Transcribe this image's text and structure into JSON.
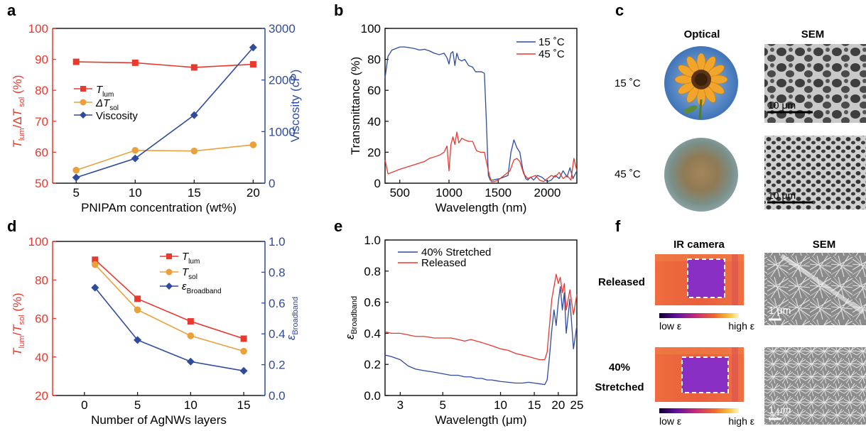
{
  "colors": {
    "red": "#e8392f",
    "orange": "#eca03c",
    "blue": "#2f4b9c",
    "axis": "#1a1a1a"
  },
  "panels": {
    "a": "a",
    "b": "b",
    "c": "c",
    "d": "d",
    "e": "e",
    "f": "f"
  },
  "chart_data": [
    {
      "id": "a",
      "type": "line",
      "xlabel": "PNIPAm concentration (wt%)",
      "ylabel_left": "T_lum/ΔT_sol (%)",
      "ylabel_right": "Viscosity (cP)",
      "xlim": [
        3,
        21
      ],
      "ylim_left": [
        50,
        100
      ],
      "ylim_right": [
        0,
        3000
      ],
      "x_ticks": [
        "5",
        "10",
        "15",
        "20"
      ],
      "y_ticks_left": [
        "50",
        "60",
        "70",
        "80",
        "90",
        "100"
      ],
      "y_ticks_right": [
        "0",
        "1000",
        "2000",
        "3000"
      ],
      "legend": {
        "t_lum": "T",
        "t_lum_sub": "lum",
        "dt_sol": "ΔT",
        "dt_sol_sub": "sol",
        "viscosity": "Viscosity"
      },
      "series": [
        {
          "name": "T_lum",
          "axis": "left",
          "marker": "square",
          "color": "#e8392f",
          "x": [
            5,
            10,
            15,
            20
          ],
          "y": [
            89.2,
            88.9,
            87.4,
            88.4
          ]
        },
        {
          "name": "ΔT_sol",
          "axis": "left",
          "marker": "circle",
          "color": "#eca03c",
          "x": [
            5,
            10,
            15,
            20
          ],
          "y": [
            54.2,
            60.6,
            60.4,
            62.4
          ]
        },
        {
          "name": "Viscosity",
          "axis": "right",
          "marker": "diamond",
          "color": "#2f4b9c",
          "x": [
            5,
            10,
            15,
            20
          ],
          "y": [
            110,
            480,
            1320,
            2630
          ]
        }
      ]
    },
    {
      "id": "b",
      "type": "line",
      "xlabel": "Wavelength (nm)",
      "ylabel": "Transmittance (%)",
      "xlim": [
        350,
        2300
      ],
      "ylim": [
        0,
        100
      ],
      "x_ticks": [
        "500",
        "1000",
        "1500",
        "2000"
      ],
      "y_ticks": [
        "0",
        "20",
        "40",
        "60",
        "80",
        "100"
      ],
      "legend": [
        "15 ˚C",
        "45 ˚C"
      ],
      "series": [
        {
          "name": "15 ˚C",
          "color": "#2f4b9c",
          "x": [
            350,
            380,
            420,
            460,
            500,
            550,
            600,
            650,
            700,
            750,
            800,
            850,
            900,
            950,
            980,
            1000,
            1020,
            1040,
            1060,
            1080,
            1100,
            1130,
            1160,
            1200,
            1240,
            1270,
            1300,
            1330,
            1360,
            1380,
            1400,
            1420,
            1450,
            1480,
            1520,
            1560,
            1600,
            1630,
            1660,
            1690,
            1720,
            1750,
            1780,
            1800,
            1830,
            1860,
            1900,
            1940,
            1980,
            2000,
            2040,
            2080,
            2120,
            2160,
            2200,
            2230,
            2260,
            2300
          ],
          "y": [
            68,
            82,
            86,
            87,
            88,
            88,
            87.5,
            87,
            86,
            86.5,
            85.5,
            84,
            83,
            84,
            81,
            77,
            84,
            85,
            76,
            84,
            80,
            79,
            80,
            76,
            75,
            72,
            72,
            72,
            71,
            40,
            5,
            2,
            2,
            2.5,
            3,
            4,
            5,
            20,
            28,
            23,
            20,
            9,
            3,
            2,
            4,
            2,
            5,
            4,
            2,
            1,
            2,
            5,
            3,
            8,
            4,
            10,
            3,
            8
          ]
        },
        {
          "name": "45 ˚C",
          "color": "#e8392f",
          "x": [
            350,
            380,
            420,
            460,
            500,
            550,
            600,
            650,
            700,
            750,
            800,
            850,
            900,
            950,
            980,
            1000,
            1020,
            1040,
            1060,
            1080,
            1100,
            1130,
            1160,
            1200,
            1240,
            1280,
            1320,
            1360,
            1400,
            1430,
            1460,
            1500,
            1540,
            1580,
            1620,
            1660,
            1690,
            1720,
            1760,
            1800,
            1840,
            1880,
            1920,
            1960,
            2000,
            2040,
            2080,
            2120,
            2160,
            2200,
            2240,
            2270,
            2300
          ],
          "y": [
            15,
            6,
            7,
            8,
            9,
            10,
            11,
            12,
            13,
            14,
            16,
            17,
            18,
            20,
            24,
            8,
            25,
            30,
            25,
            33,
            26,
            29,
            28,
            27,
            27,
            21,
            20,
            20,
            8,
            1,
            1,
            2,
            4,
            6,
            8,
            15,
            16,
            14,
            6,
            3,
            4,
            5,
            2,
            1,
            3,
            5,
            4,
            7,
            3,
            5,
            2,
            16,
            8
          ]
        }
      ]
    },
    {
      "id": "d",
      "type": "line",
      "xlabel": "Number of AgNWs layers",
      "ylabel_left": "T_lum/T_sol (%)",
      "ylabel_right": "ε_Broadband",
      "xlim": [
        -3,
        17
      ],
      "ylim_left": [
        20,
        100
      ],
      "ylim_right": [
        0,
        1.0
      ],
      "x_ticks": [
        "0",
        "5",
        "10",
        "15"
      ],
      "y_ticks_left": [
        "20",
        "40",
        "60",
        "80",
        "100"
      ],
      "y_ticks_right": [
        "0.0",
        "0.2",
        "0.4",
        "0.6",
        "0.8",
        "1.0"
      ],
      "legend": {
        "t_lum": "T",
        "t_lum_sub": "lum",
        "t_sol": "T",
        "t_sol_sub": "sol",
        "eps": "ε",
        "eps_sub": "Broadband"
      },
      "series": [
        {
          "name": "T_lum",
          "axis": "left",
          "marker": "square",
          "color": "#e8392f",
          "x": [
            1,
            5,
            10,
            15
          ],
          "y": [
            90.5,
            70.2,
            58.5,
            49.5
          ]
        },
        {
          "name": "T_sol",
          "axis": "left",
          "marker": "circle",
          "color": "#eca03c",
          "x": [
            1,
            5,
            10,
            15
          ],
          "y": [
            88,
            64.5,
            51,
            43
          ]
        },
        {
          "name": "ε_Broadband",
          "axis": "right",
          "marker": "diamond",
          "color": "#2f4b9c",
          "x": [
            1,
            5,
            10,
            15
          ],
          "y": [
            0.7,
            0.36,
            0.22,
            0.16
          ]
        }
      ]
    },
    {
      "id": "e",
      "type": "line",
      "xscale": "log",
      "xlabel": "Wavelength (μm)",
      "ylabel": "ε_Broadband",
      "xlim": [
        2.5,
        25
      ],
      "ylim": [
        0.0,
        1.0
      ],
      "x_ticks": [
        "3",
        "5",
        "10",
        "15",
        "20",
        "25"
      ],
      "y_ticks": [
        "0.0",
        "0.2",
        "0.4",
        "0.6",
        "0.8",
        "1.0"
      ],
      "legend": [
        "40% Stretched",
        "Released"
      ],
      "series": [
        {
          "name": "40% Stretched",
          "color": "#2f4b9c",
          "x": [
            2.5,
            2.7,
            3.0,
            3.3,
            3.6,
            4.0,
            4.5,
            5.0,
            5.5,
            6.0,
            6.5,
            7.0,
            7.5,
            8.0,
            8.5,
            9.0,
            9.5,
            10,
            11,
            12,
            13,
            14,
            15,
            16,
            17,
            17.5,
            18,
            18.5,
            19,
            19.5,
            20,
            20.5,
            21,
            21.5,
            22,
            23,
            24,
            25
          ],
          "y": [
            0.26,
            0.25,
            0.23,
            0.19,
            0.17,
            0.16,
            0.15,
            0.14,
            0.13,
            0.13,
            0.12,
            0.12,
            0.11,
            0.11,
            0.1,
            0.1,
            0.095,
            0.09,
            0.085,
            0.08,
            0.08,
            0.085,
            0.08,
            0.075,
            0.07,
            0.1,
            0.25,
            0.42,
            0.55,
            0.45,
            0.6,
            0.7,
            0.55,
            0.66,
            0.4,
            0.62,
            0.3,
            0.45
          ]
        },
        {
          "name": "Released",
          "color": "#e8392f",
          "x": [
            2.5,
            2.7,
            3.0,
            3.3,
            3.6,
            4.0,
            4.5,
            5.0,
            5.5,
            6.0,
            6.5,
            7.0,
            7.5,
            8.0,
            8.5,
            9.0,
            9.5,
            10,
            11,
            12,
            13,
            14,
            15,
            16,
            17,
            17.5,
            18,
            18.5,
            19,
            19.5,
            20,
            20.5,
            21,
            21.5,
            22,
            23,
            24,
            25
          ],
          "y": [
            0.41,
            0.4,
            0.4,
            0.39,
            0.38,
            0.38,
            0.37,
            0.37,
            0.37,
            0.36,
            0.35,
            0.36,
            0.35,
            0.34,
            0.33,
            0.32,
            0.31,
            0.3,
            0.29,
            0.27,
            0.26,
            0.25,
            0.24,
            0.23,
            0.23,
            0.28,
            0.45,
            0.62,
            0.7,
            0.78,
            0.72,
            0.76,
            0.66,
            0.72,
            0.55,
            0.68,
            0.52,
            0.65
          ]
        }
      ]
    }
  ],
  "panel_c": {
    "col_optical": "Optical",
    "col_sem": "SEM",
    "row1": "15 ˚C",
    "row2": "45 ˚C",
    "scale1": "10 μm",
    "scale2": "10 μm"
  },
  "panel_f": {
    "col_ir": "IR camera",
    "col_sem": "SEM",
    "row1": "Released",
    "row2_line1": "40%",
    "row2_line2": "Stretched",
    "cbar_low": "low ε",
    "cbar_high": "high ε",
    "scale1": "1 μm",
    "scale2": "1 μm"
  }
}
